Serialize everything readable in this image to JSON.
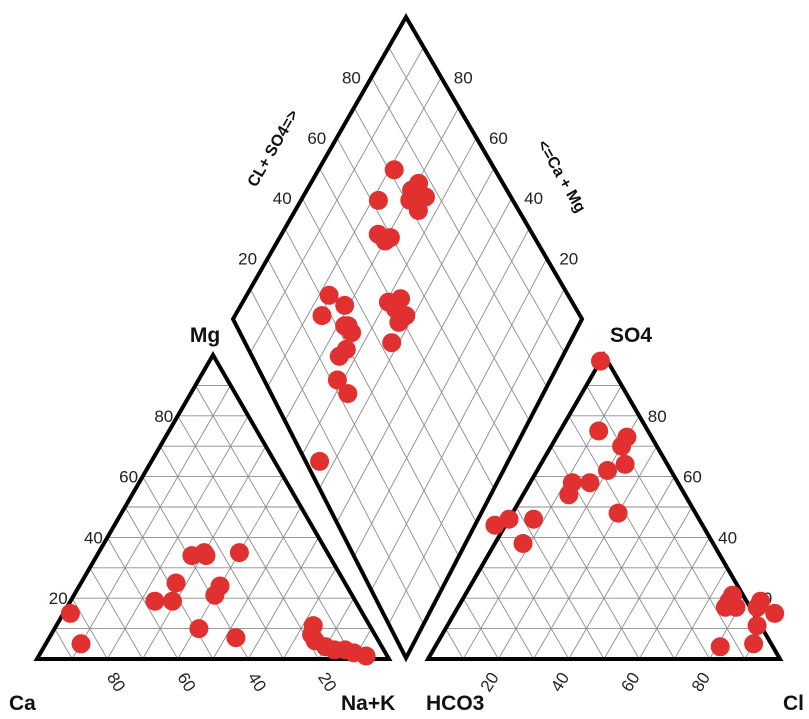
{
  "colors": {
    "point": "#e03030",
    "frame": "#000000",
    "grid": "#8c8c8c"
  },
  "tick_labels": [
    "80",
    "60",
    "40",
    "20"
  ],
  "cation_ternary": {
    "apex_top": "Mg",
    "corner_left": "Ca",
    "corner_right": "Na+K",
    "samples": [
      {
        "Mg": 15,
        "Na_K": 2
      },
      {
        "Mg": 5,
        "Na_K": 10
      },
      {
        "Mg": 34,
        "Na_K": 27
      },
      {
        "Mg": 35,
        "Na_K": 30
      },
      {
        "Mg": 34,
        "Na_K": 31
      },
      {
        "Mg": 35,
        "Na_K": 40
      },
      {
        "Mg": 25,
        "Na_K": 27
      },
      {
        "Mg": 19,
        "Na_K": 24
      },
      {
        "Mg": 19,
        "Na_K": 29
      },
      {
        "Mg": 24,
        "Na_K": 40
      },
      {
        "Mg": 21,
        "Na_K": 40
      },
      {
        "Mg": 10,
        "Na_K": 41
      },
      {
        "Mg": 7,
        "Na_K": 53
      },
      {
        "Mg": 11,
        "Na_K": 73
      },
      {
        "Mg": 8,
        "Na_K": 74
      },
      {
        "Mg": 6,
        "Na_K": 76
      },
      {
        "Mg": 4,
        "Na_K": 80
      },
      {
        "Mg": 3,
        "Na_K": 83
      },
      {
        "Mg": 3,
        "Na_K": 86
      },
      {
        "Mg": 2,
        "Na_K": 89
      },
      {
        "Mg": 1,
        "Na_K": 93
      }
    ]
  },
  "anion_ternary": {
    "apex_top": "SO4",
    "corner_left": "HCO3",
    "corner_right": "Cl",
    "samples": [
      {
        "SO4": 98,
        "Cl": 0
      },
      {
        "SO4": 75,
        "Cl": 11
      },
      {
        "SO4": 73,
        "Cl": 20
      },
      {
        "SO4": 70,
        "Cl": 20
      },
      {
        "SO4": 64,
        "Cl": 24
      },
      {
        "SO4": 62,
        "Cl": 20
      },
      {
        "SO4": 58,
        "Cl": 17
      },
      {
        "SO4": 58,
        "Cl": 12
      },
      {
        "SO4": 54,
        "Cl": 13
      },
      {
        "SO4": 48,
        "Cl": 30
      },
      {
        "SO4": 46,
        "Cl": 7
      },
      {
        "SO4": 46,
        "Cl": 0
      },
      {
        "SO4": 44,
        "Cl": -3
      },
      {
        "SO4": 38,
        "Cl": 8
      },
      {
        "SO4": 21,
        "Cl": 76
      },
      {
        "SO4": 19,
        "Cl": 76
      },
      {
        "SO4": 17,
        "Cl": 76
      },
      {
        "SO4": 17,
        "Cl": 79
      },
      {
        "SO4": 19,
        "Cl": 85
      },
      {
        "SO4": 17,
        "Cl": 85
      },
      {
        "SO4": 15,
        "Cl": 91
      },
      {
        "SO4": 11,
        "Cl": 88
      },
      {
        "SO4": 5,
        "Cl": 90
      },
      {
        "SO4": 4,
        "Cl": 81
      }
    ]
  },
  "diamond": {
    "left_axis_label": "CL+ SO4=>",
    "right_axis_label": "<=Ca + Mg",
    "samples": [
      {
        "Cl_SO4": 54,
        "Ca_Mg": 4
      },
      {
        "Cl_SO4": 75,
        "Ca_Mg": 26
      },
      {
        "Cl_SO4": 76,
        "Ca_Mg": 31
      },
      {
        "Cl_SO4": 70,
        "Ca_Mg": 34
      },
      {
        "Cl_SO4": 66,
        "Ca_Mg": 32
      },
      {
        "Cl_SO4": 67,
        "Ca_Mg": 31
      },
      {
        "Cl_SO4": 64,
        "Ca_Mg": 32
      },
      {
        "Cl_SO4": 63,
        "Ca_Mg": 28
      },
      {
        "Cl_SO4": 64,
        "Ca_Mg": 25
      },
      {
        "Cl_SO4": 61,
        "Ca_Mg": 21
      },
      {
        "Cl_SO4": 56,
        "Ca_Mg": 22
      },
      {
        "Cl_SO4": 51,
        "Ca_Mg": 42
      },
      {
        "Cl_SO4": 55,
        "Ca_Mg": 48
      },
      {
        "Cl_SO4": 55,
        "Ca_Mg": 51
      },
      {
        "Cl_SO4": 71,
        "Ca_Mg": 54
      },
      {
        "Cl_SO4": 76,
        "Ca_Mg": 59
      },
      {
        "Cl_SO4": 67,
        "Ca_Mg": 57
      },
      {
        "Cl_SO4": 68,
        "Ca_Mg": 55
      },
      {
        "Cl_SO4": 76,
        "Ca_Mg": 68
      },
      {
        "Cl_SO4": 68,
        "Ca_Mg": 70
      },
      {
        "Cl_SO4": 66,
        "Ca_Mg": 71
      },
      {
        "Cl_SO4": 67,
        "Ca_Mg": 68
      },
      {
        "Cl_SO4": 67,
        "Ca_Mg": 73
      },
      {
        "Cl_SO4": 63,
        "Ca_Mg": 69
      },
      {
        "Cl_SO4": 63,
        "Ca_Mg": 73
      },
      {
        "Cl_SO4": 52,
        "Ca_Mg": 47
      },
      {
        "Cl_SO4": 58,
        "Ca_Mg": 47
      },
      {
        "Cl_SO4": 51,
        "Ca_Mg": 50
      }
    ]
  }
}
